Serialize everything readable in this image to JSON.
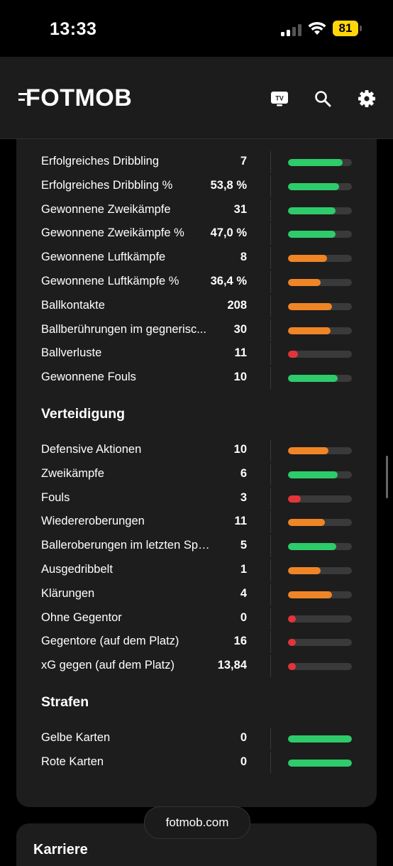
{
  "status_bar": {
    "time": "13:33",
    "battery": "81"
  },
  "header": {
    "logo": "FOTMOB",
    "icons": [
      "tv-icon",
      "search-icon",
      "gear-icon"
    ],
    "tv_badge": "TV"
  },
  "colors": {
    "green": "#2dcb6a",
    "orange": "#f08526",
    "red": "#e3343a",
    "track": "#3a3a3a"
  },
  "stats_top": [
    {
      "label": "Erfolgreiches Dribbling",
      "value": "7",
      "bar": 0.85,
      "color": "green"
    },
    {
      "label": "Erfolgreiches Dribbling %",
      "value": "53,8 %",
      "bar": 0.8,
      "color": "green"
    },
    {
      "label": "Gewonnene Zweikämpfe",
      "value": "31",
      "bar": 0.74,
      "color": "green"
    },
    {
      "label": "Gewonnene Zweikämpfe %",
      "value": "47,0 %",
      "bar": 0.74,
      "color": "green"
    },
    {
      "label": "Gewonnene Luftkämpfe",
      "value": "8",
      "bar": 0.61,
      "color": "orange"
    },
    {
      "label": "Gewonnene Luftkämpfe %",
      "value": "36,4 %",
      "bar": 0.51,
      "color": "orange"
    },
    {
      "label": "Ballkontakte",
      "value": "208",
      "bar": 0.69,
      "color": "orange"
    },
    {
      "label": "Ballberührungen im gegnerisc...",
      "value": "30",
      "bar": 0.67,
      "color": "orange"
    },
    {
      "label": "Ballverluste",
      "value": "11",
      "bar": 0.16,
      "color": "red"
    },
    {
      "label": "Gewonnene Fouls",
      "value": "10",
      "bar": 0.78,
      "color": "green"
    }
  ],
  "defense": {
    "title": "Verteidigung",
    "rows": [
      {
        "label": "Defensive Aktionen",
        "value": "10",
        "bar": 0.63,
        "color": "orange"
      },
      {
        "label": "Zweikämpfe",
        "value": "6",
        "bar": 0.78,
        "color": "green"
      },
      {
        "label": "Fouls",
        "value": "3",
        "bar": 0.2,
        "color": "red"
      },
      {
        "label": "Wiedereroberungen",
        "value": "11",
        "bar": 0.58,
        "color": "orange"
      },
      {
        "label": "Balleroberungen im letzten Spie...",
        "value": "5",
        "bar": 0.75,
        "color": "green"
      },
      {
        "label": "Ausgedribbelt",
        "value": "1",
        "bar": 0.51,
        "color": "orange"
      },
      {
        "label": "Klärungen",
        "value": "4",
        "bar": 0.69,
        "color": "orange"
      },
      {
        "label": "Ohne Gegentor",
        "value": "0",
        "bar": 0.12,
        "color": "red"
      },
      {
        "label": "Gegentore (auf dem Platz)",
        "value": "16",
        "bar": 0.12,
        "color": "red"
      },
      {
        "label": "xG gegen (auf dem Platz)",
        "value": "13,84",
        "bar": 0.12,
        "color": "red"
      }
    ]
  },
  "penalties": {
    "title": "Strafen",
    "rows": [
      {
        "label": "Gelbe Karten",
        "value": "0",
        "bar": 1.0,
        "color": "green"
      },
      {
        "label": "Rote Karten",
        "value": "0",
        "bar": 1.0,
        "color": "green"
      }
    ]
  },
  "next_section": {
    "title": "Karriere"
  },
  "url_pill": "fotmob.com"
}
